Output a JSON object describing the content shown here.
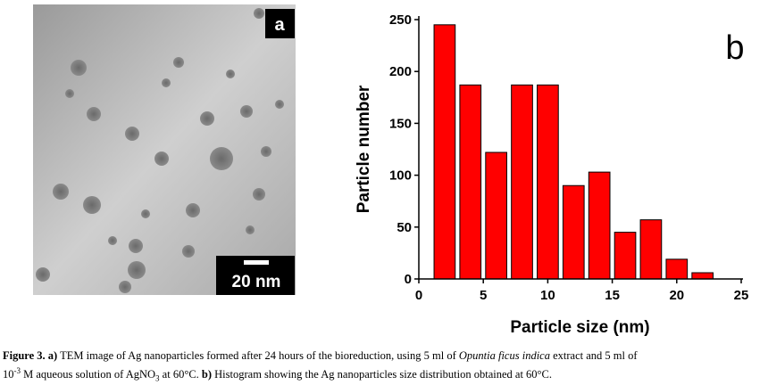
{
  "panel_a": {
    "label": "a",
    "scale_bar": "20 nm"
  },
  "chart_data": {
    "type": "bar",
    "annotation": "b",
    "x": [
      2,
      4,
      6,
      8,
      10,
      12,
      14,
      16,
      18,
      20,
      22
    ],
    "values": [
      245,
      187,
      122,
      187,
      187,
      90,
      103,
      45,
      57,
      19,
      6
    ],
    "color": "#ff0000",
    "xlabel": "Particle size (nm)",
    "ylabel": "Particle number",
    "xlim": [
      0,
      25
    ],
    "xticks": [
      0,
      5,
      10,
      15,
      20,
      25
    ],
    "ylim": [
      0,
      250
    ],
    "yticks": [
      0,
      50,
      100,
      150,
      200,
      250
    ]
  },
  "caption": [
    [
      {
        "text": "Figure 3. a)",
        "style": "bold"
      },
      {
        "text": " TEM image of Ag nanoparticles formed after 24 hours of the bioreduction, using 5 ml of ",
        "style": "normal"
      },
      {
        "text": "Opuntia ficus indica",
        "style": "italic"
      },
      {
        "text": " extract and 5 ml of",
        "style": "normal"
      }
    ],
    [
      {
        "text": "10",
        "style": "normal"
      },
      {
        "text": "-3",
        "style": "sup"
      },
      {
        "text": " M aqueous solution of AgNO",
        "style": "normal"
      },
      {
        "text": "3",
        "style": "sub"
      },
      {
        "text": " at 60°C. ",
        "style": "normal"
      },
      {
        "text": "b)",
        "style": "bold"
      },
      {
        "text": " Histogram showing the Ag nanoparticles size distribution obtained at 60°C.",
        "style": "normal"
      }
    ]
  ]
}
